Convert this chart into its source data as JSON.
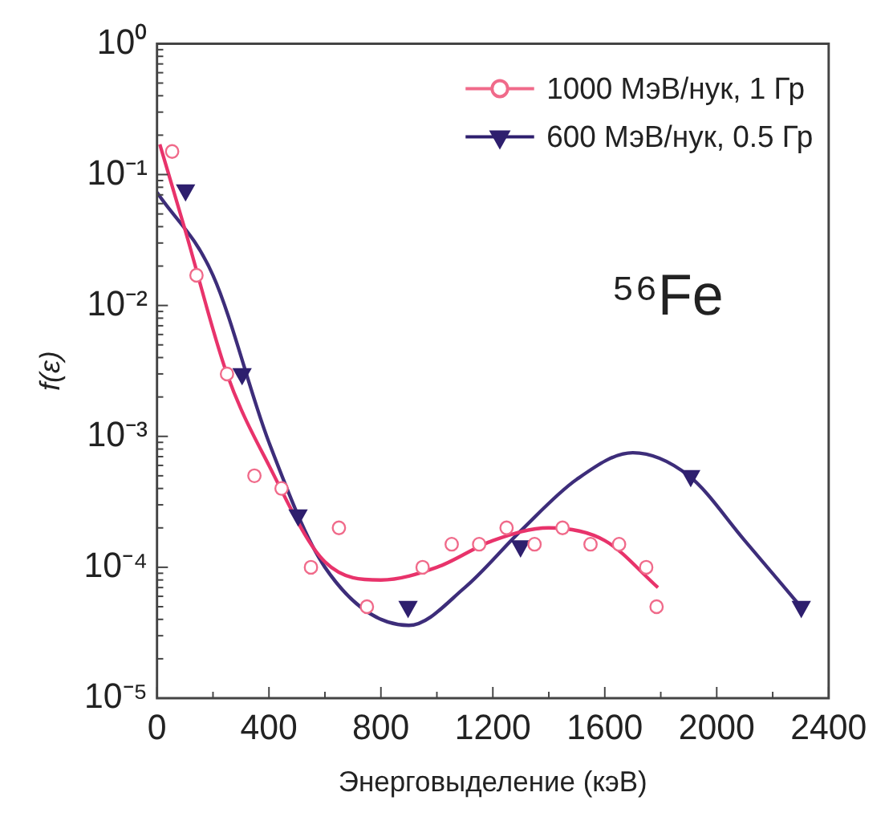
{
  "chart_data": {
    "type": "scatter",
    "xlabel": "Энерговыделение (кэВ)",
    "ylabel": "f(ε)",
    "annotations": [
      "⁵⁶Fe"
    ],
    "log": "y",
    "grid": false,
    "legend": "top right",
    "xlim": [
      0,
      2400
    ],
    "ylim": [
      1e-05,
      1
    ],
    "xticks": [
      0,
      {
        "value": 200,
        "label": null
      },
      400,
      {
        "value": 600,
        "label": null
      },
      800,
      {
        "value": 1000,
        "label": null
      },
      1200,
      {
        "value": 1400,
        "label": null
      },
      1600,
      {
        "value": 1800,
        "label": null
      },
      2000,
      {
        "value": 2200,
        "label": null
      },
      2400
    ],
    "yticks": [
      {
        "value": 1e-05,
        "label": "10⁻⁵"
      },
      {
        "value": 2e-05,
        "label": null
      },
      {
        "value": 3e-05,
        "label": null
      },
      {
        "value": 4e-05,
        "label": null
      },
      {
        "value": 5e-05,
        "label": null
      },
      {
        "value": 6e-05,
        "label": null
      },
      {
        "value": 7e-05,
        "label": null
      },
      {
        "value": 8e-05,
        "label": null
      },
      {
        "value": 9e-05,
        "label": null
      },
      {
        "value": 0.0001,
        "label": "10⁻⁴"
      },
      {
        "value": 0.0002,
        "label": null
      },
      {
        "value": 0.0003,
        "label": null
      },
      {
        "value": 0.0004,
        "label": null
      },
      {
        "value": 0.0005,
        "label": null
      },
      {
        "value": 0.0006,
        "label": null
      },
      {
        "value": 0.0007,
        "label": null
      },
      {
        "value": 0.0008,
        "label": null
      },
      {
        "value": 0.0009,
        "label": null
      },
      {
        "value": 0.001,
        "label": "10⁻³"
      },
      {
        "value": 0.002,
        "label": null
      },
      {
        "value": 0.003,
        "label": null
      },
      {
        "value": 0.004,
        "label": null
      },
      {
        "value": 0.005,
        "label": null
      },
      {
        "value": 0.006,
        "label": null
      },
      {
        "value": 0.007,
        "label": null
      },
      {
        "value": 0.008,
        "label": null
      },
      {
        "value": 0.009,
        "label": null
      },
      {
        "value": 0.01,
        "label": "10⁻²"
      },
      {
        "value": 0.02,
        "label": null
      },
      {
        "value": 0.03,
        "label": null
      },
      {
        "value": 0.04,
        "label": null
      },
      {
        "value": 0.05,
        "label": null
      },
      {
        "value": 0.06,
        "label": null
      },
      {
        "value": 0.07,
        "label": null
      },
      {
        "value": 0.08,
        "label": null
      },
      {
        "value": 0.09,
        "label": null
      },
      {
        "value": 0.1,
        "label": "10⁻¹"
      },
      {
        "value": 0.2,
        "label": null
      },
      {
        "value": 0.3,
        "label": null
      },
      {
        "value": 0.4,
        "label": null
      },
      {
        "value": 0.5,
        "label": null
      },
      {
        "value": 0.6,
        "label": null
      },
      {
        "value": 0.7,
        "label": null
      },
      {
        "value": 0.8,
        "label": null
      },
      {
        "value": 0.9,
        "label": null
      },
      {
        "value": 1,
        "label": "10⁰"
      }
    ],
    "series": [
      {
        "name": "1000 МэВ/нук, 1 Гр",
        "type": "scatter",
        "marker": "circle",
        "color": "#f06a8a",
        "x": [
          54,
          141,
          250,
          348,
          445,
          550,
          650,
          750,
          949,
          1053,
          1151,
          1249,
          1349,
          1449,
          1549,
          1651,
          1748,
          1785
        ],
        "values": [
          0.15,
          0.017,
          0.003,
          0.0005,
          0.0004,
          0.0001,
          0.0002,
          5e-05,
          0.0001,
          0.00015,
          0.00015,
          0.0002,
          0.00015,
          0.0002,
          0.00015,
          0.00015,
          0.0001,
          5e-05
        ]
      },
      {
        "name": "600 МэВ/нук, 0.5 Гр",
        "type": "scatter",
        "marker": "triangle",
        "color": "#2e1f6e",
        "x": [
          102,
          304,
          504,
          897,
          1299,
          1907,
          2302
        ],
        "values": [
          0.076,
          0.003,
          0.00025,
          5e-05,
          0.000145,
          0.0005,
          5e-05
        ]
      },
      {
        "type": "line",
        "marker": "none",
        "color": "#e8336b",
        "x": [
          10,
          100,
          250,
          400,
          600,
          800,
          1000,
          1200,
          1400,
          1600,
          1790
        ],
        "values": [
          0.17,
          0.038,
          0.003,
          0.0006,
          0.00011,
          8e-05,
          0.0001,
          0.00016,
          0.0002,
          0.00016,
          7e-05
        ]
      },
      {
        "type": "line",
        "marker": "none",
        "color": "#3d2d7a",
        "x": [
          0,
          200,
          400,
          600,
          900,
          1100,
          1300,
          1500,
          1700,
          1900,
          2100,
          2300
        ],
        "values": [
          0.073,
          0.017,
          0.0009,
          0.0001,
          3.6e-05,
          7e-05,
          0.00019,
          0.00047,
          0.00075,
          0.0005,
          0.00016,
          5e-05
        ]
      }
    ]
  }
}
